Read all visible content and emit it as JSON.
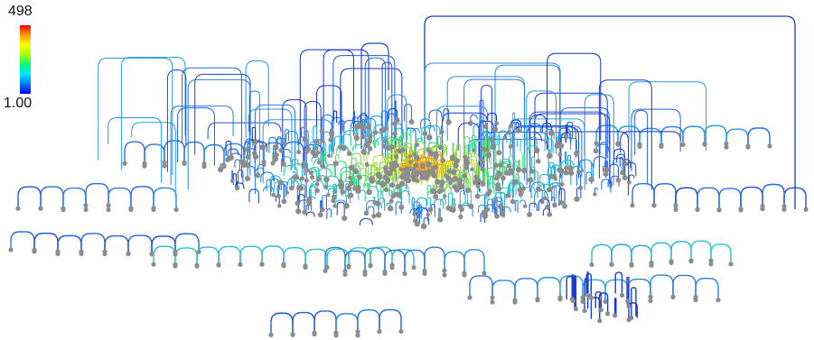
{
  "colorbar": {
    "max_label": "498",
    "min_label": "1.00",
    "stops": [
      "#0000ff",
      "#0078ff",
      "#00e6ff",
      "#00ff7a",
      "#aaff00",
      "#ffff00",
      "#ff9a00",
      "#ff0000"
    ]
  },
  "palette": {
    "node": "#8c8c8c",
    "edge_low": "#1428c8",
    "edge_mid": "#28b4dc",
    "edge_high": "#ff7a00"
  }
}
